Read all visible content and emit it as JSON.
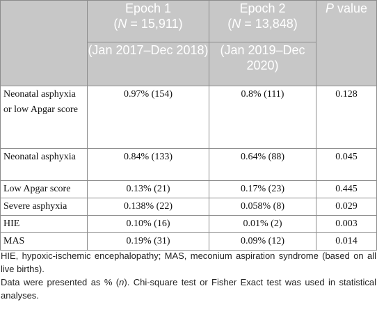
{
  "table": {
    "header": {
      "epoch1": {
        "title": "Epoch 1",
        "n_open": "(",
        "n_var": "N",
        "n_rest": " = 15,911)",
        "period": "(Jan 2017–Dec 2018)"
      },
      "epoch2": {
        "title": "Epoch 2",
        "n_open": "(",
        "n_var": "N",
        "n_rest": " = 13,848)",
        "period": "(Jan 2019–Dec 2020)"
      },
      "pvalue": {
        "var": "P",
        "rest": " value"
      }
    },
    "rows": [
      {
        "label": "Neonatal asphyxia or low Apgar score",
        "epoch1": "0.97% (154)",
        "epoch2": "0.8% (111)",
        "p": "0.128"
      },
      {
        "label": "Neonatal asphyxia",
        "epoch1": "0.84% (133)",
        "epoch2": "0.64% (88)",
        "p": "0.045"
      },
      {
        "label": "Low Apgar score",
        "epoch1": "0.13% (21)",
        "epoch2": "0.17% (23)",
        "p": "0.445"
      },
      {
        "label": "Severe asphyxia",
        "epoch1": "0.138% (22)",
        "epoch2": "0.058% (8)",
        "p": "0.029"
      },
      {
        "label": "HIE",
        "epoch1": "0.10% (16)",
        "epoch2": "0.01% (2)",
        "p": "0.003"
      },
      {
        "label": "MAS",
        "epoch1": "0.19% (31)",
        "epoch2": "0.09% (12)",
        "p": "0.014"
      }
    ]
  },
  "footnotes": {
    "abbrev": "HIE, hypoxic-ischemic encephalopathy; MAS, meconium aspiration syndrome (based on all live births).",
    "stats_pre": "Data were presented as % (",
    "stats_var": "n",
    "stats_post": "). Chi-square test or Fisher Exact test was used in statistical analyses."
  },
  "colors": {
    "header_bg": "#c7c7c7",
    "header_text": "#ffffff",
    "border": "#8c8c8c"
  }
}
